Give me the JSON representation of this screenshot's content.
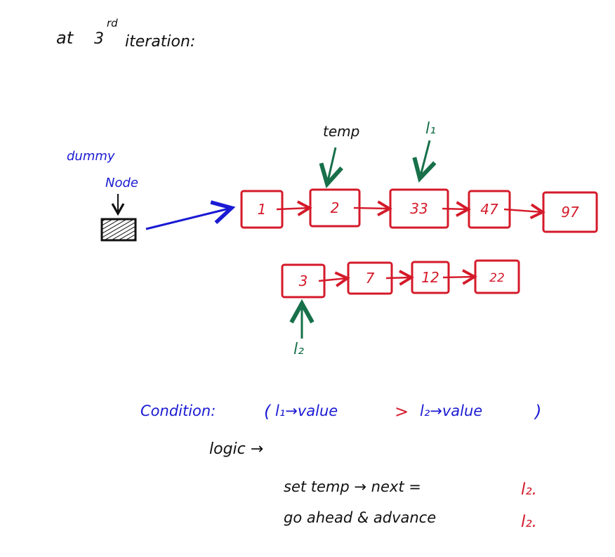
{
  "title": {
    "prefix": "at",
    "number": "3",
    "sup": "rd",
    "suffix": "iteration:"
  },
  "labels": {
    "dummy": "dummy",
    "node": "Node",
    "temp": "temp",
    "l1": "l₁",
    "l2": "l₂"
  },
  "list1": [
    "1",
    "2",
    "33",
    "47",
    "97"
  ],
  "list2": [
    "3",
    "7",
    "12",
    "22"
  ],
  "condition": {
    "prefix": "Condition:",
    "open": "(",
    "left": "l₁→value",
    "op": ">",
    "right": "l₂→value",
    "close": ")"
  },
  "logic": {
    "label": "logic →",
    "line1_text": "set temp → next =",
    "line1_var": "l₂.",
    "line2_text": "go ahead & advance",
    "line2_var": "l₂."
  },
  "colors": {
    "black": "#111111",
    "blue": "#1a1ad4",
    "red": "#d41a2a",
    "green": "#17704a"
  }
}
